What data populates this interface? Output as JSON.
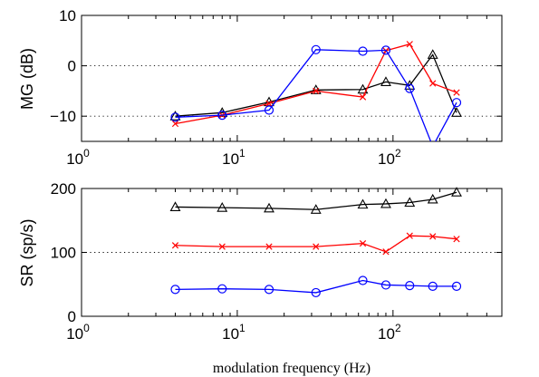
{
  "chart_data": [
    {
      "type": "line",
      "ylabel": "MG (dB)",
      "xlabel": "",
      "xscale": "log",
      "xlim": [
        1,
        500
      ],
      "ylim": [
        -15,
        10
      ],
      "yticks": [
        -10,
        0,
        10
      ],
      "xtick_labels": [
        {
          "base": "10",
          "exp": "0"
        },
        {
          "base": "10",
          "exp": "1"
        },
        {
          "base": "10",
          "exp": "2"
        }
      ],
      "grid_y": [
        -10,
        0
      ],
      "series": [
        {
          "color": "#000000",
          "marker": "triangle",
          "x": [
            4,
            8,
            16,
            32,
            64,
            90,
            128,
            180,
            256
          ],
          "y": [
            -10,
            -9.3,
            -7.2,
            -4.8,
            -4.7,
            -3.2,
            -3.9,
            2.2,
            -9.3
          ]
        },
        {
          "color": "#ff0000",
          "marker": "x",
          "x": [
            4,
            8,
            16,
            32,
            64,
            90,
            128,
            180,
            256
          ],
          "y": [
            -11.5,
            -9.8,
            -7.5,
            -5,
            -6.2,
            3,
            4.3,
            -3.5,
            -5.3
          ]
        },
        {
          "color": "#0000ff",
          "marker": "circle",
          "x": [
            4,
            8,
            16,
            32,
            64,
            90,
            128,
            180,
            256
          ],
          "y": [
            -10.2,
            -9.8,
            -8.8,
            3.2,
            2.9,
            3.1,
            -4.5,
            -16,
            -7.3
          ]
        }
      ]
    },
    {
      "type": "line",
      "ylabel": "SR (sp/s)",
      "xlabel": "modulation frequency (Hz)",
      "xscale": "log",
      "xlim": [
        1,
        500
      ],
      "ylim": [
        0,
        200
      ],
      "yticks": [
        0,
        100,
        200
      ],
      "xtick_labels": [
        {
          "base": "10",
          "exp": "0"
        },
        {
          "base": "10",
          "exp": "1"
        },
        {
          "base": "10",
          "exp": "2"
        }
      ],
      "grid_y": [
        100
      ],
      "series": [
        {
          "color": "#000000",
          "marker": "triangle",
          "x": [
            4,
            8,
            16,
            32,
            64,
            90,
            128,
            180,
            256
          ],
          "y": [
            171,
            170,
            169,
            167,
            175,
            176,
            178,
            183,
            194
          ]
        },
        {
          "color": "#ff0000",
          "marker": "x",
          "x": [
            4,
            8,
            16,
            32,
            64,
            90,
            128,
            180,
            256
          ],
          "y": [
            111,
            109,
            109,
            109,
            114,
            101,
            126,
            125,
            121
          ]
        },
        {
          "color": "#0000ff",
          "marker": "circle",
          "x": [
            4,
            8,
            16,
            32,
            64,
            90,
            128,
            180,
            256
          ],
          "y": [
            42,
            43,
            42,
            37,
            56,
            49,
            48,
            47,
            47
          ]
        }
      ]
    }
  ]
}
